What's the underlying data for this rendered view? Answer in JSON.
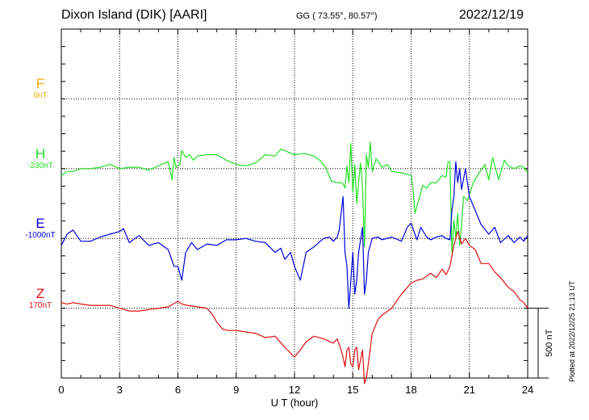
{
  "header": {
    "station": "Dixon Island (DIK)  [AARI]",
    "coords": "GG ( 73.55°,  80.57°)",
    "date": "2022/12/19"
  },
  "footer": {
    "plotted": "Plotted at 2022/12/25 21:13 UT"
  },
  "chart_data": {
    "type": "line",
    "xlabel": "U T (hour)",
    "xlim": [
      0,
      24
    ],
    "xticks": [
      0,
      3,
      6,
      9,
      12,
      15,
      18,
      21,
      24
    ],
    "scale_bar": {
      "label": "500 nT",
      "value": 500
    },
    "ylim_nT_relative": [
      -1000,
      1000
    ],
    "series": [
      {
        "name": "F",
        "offset_label": "0nT",
        "color": "#f0a800",
        "baseline_index": 1,
        "x": [],
        "y": []
      },
      {
        "name": "H",
        "offset_label": "-230nT",
        "color": "#22e022",
        "baseline_index": 2,
        "x": [
          0,
          0.3,
          0.6,
          1,
          1.5,
          2,
          2.5,
          3,
          3.5,
          4,
          4.5,
          5,
          5.5,
          5.7,
          5.8,
          5.9,
          6,
          6.1,
          6.2,
          6.4,
          6.6,
          6.8,
          7,
          7.5,
          8,
          8.5,
          9,
          9.5,
          10,
          10.5,
          11,
          11.3,
          11.5,
          11.8,
          12,
          12.5,
          13,
          13.3,
          13.6,
          13.9,
          14.2,
          14.4,
          14.5,
          14.6,
          14.7,
          14.8,
          14.9,
          15,
          15.1,
          15.2,
          15.3,
          15.4,
          15.5,
          15.6,
          15.7,
          15.8,
          15.9,
          16,
          16.2,
          16.5,
          16.8,
          17,
          17.5,
          17.8,
          18,
          18.1,
          18.2,
          18.4,
          18.6,
          18.8,
          19,
          19.3,
          19.6,
          19.8,
          19.9,
          20,
          20.1,
          20.2,
          20.3,
          20.4,
          20.5,
          20.6,
          20.7,
          20.9,
          21.2,
          21.5,
          21.8,
          22,
          22.2,
          22.5,
          22.8,
          23,
          23.3,
          23.6,
          23.8,
          24
        ],
        "y": [
          -50,
          -20,
          -20,
          0,
          0,
          10,
          30,
          0,
          10,
          10,
          -10,
          20,
          50,
          -80,
          80,
          10,
          20,
          30,
          130,
          80,
          100,
          60,
          90,
          100,
          100,
          60,
          30,
          20,
          40,
          100,
          90,
          140,
          130,
          110,
          100,
          110,
          90,
          60,
          10,
          -90,
          -100,
          -100,
          -110,
          -140,
          20,
          -100,
          180,
          -170,
          30,
          -250,
          -90,
          40,
          -130,
          -560,
          100,
          10,
          190,
          -20,
          70,
          10,
          30,
          -20,
          -30,
          -40,
          -50,
          -140,
          -320,
          -220,
          -120,
          -140,
          -100,
          -100,
          -50,
          -60,
          50,
          50,
          -600,
          -370,
          -500,
          -320,
          -550,
          -400,
          -200,
          -230,
          -100,
          -30,
          30,
          -80,
          80,
          -80,
          60,
          20,
          0,
          20,
          10,
          -30
        ]
      },
      {
        "name": "E",
        "offset_label": "-1000nT",
        "color": "#0000e0",
        "baseline_index": 3,
        "x": [
          0,
          0.3,
          0.6,
          1,
          1.5,
          2,
          2.5,
          3,
          3.2,
          3.5,
          4,
          4.5,
          5,
          5.5,
          5.8,
          6,
          6.2,
          6.4,
          6.7,
          7,
          7.5,
          8,
          8.5,
          9,
          9.5,
          10,
          10.5,
          11,
          11.3,
          11.5,
          11.8,
          12,
          12.3,
          12.6,
          13,
          13.5,
          13.8,
          14,
          14.2,
          14.3,
          14.5,
          14.6,
          14.7,
          14.8,
          14.9,
          15,
          15.1,
          15.2,
          15.3,
          15.5,
          15.6,
          15.7,
          15.8,
          16,
          16.3,
          16.5,
          17,
          17.5,
          17.8,
          18,
          18.3,
          18.5,
          18.8,
          19,
          19.3,
          19.6,
          19.8,
          20,
          20.1,
          20.2,
          20.3,
          20.4,
          20.5,
          20.6,
          20.8,
          21,
          21.3,
          21.6,
          22,
          22.3,
          22.6,
          23,
          23.3,
          23.6,
          23.8,
          24
        ],
        "y": [
          -50,
          30,
          60,
          -20,
          -20,
          10,
          30,
          50,
          70,
          -30,
          20,
          -50,
          -30,
          -80,
          -200,
          -200,
          -300,
          -100,
          -30,
          -80,
          -40,
          -50,
          -10,
          -10,
          0,
          -20,
          -30,
          -100,
          -70,
          -150,
          -100,
          -200,
          -300,
          -100,
          -60,
          0,
          10,
          -20,
          10,
          60,
          300,
          -100,
          -200,
          -500,
          -300,
          -100,
          -400,
          -300,
          -100,
          80,
          -400,
          -300,
          -100,
          0,
          10,
          -10,
          10,
          -20,
          80,
          110,
          -10,
          80,
          10,
          -10,
          10,
          20,
          0,
          -10,
          200,
          300,
          550,
          400,
          500,
          350,
          500,
          300,
          200,
          100,
          30,
          80,
          -30,
          20,
          -30,
          10,
          -20,
          20
        ]
      },
      {
        "name": "Z",
        "offset_label": "170nT",
        "color": "#e01010",
        "baseline_index": 4,
        "x": [
          0,
          0.3,
          0.6,
          1,
          1.5,
          2,
          2.5,
          3,
          3.5,
          4,
          4.5,
          5,
          5.5,
          6,
          6.2,
          6.5,
          7,
          7.5,
          7.8,
          8,
          8.3,
          8.6,
          9,
          9.5,
          10,
          10.5,
          11,
          11.5,
          12,
          12.3,
          12.6,
          13,
          13.5,
          14,
          14.2,
          14.4,
          14.5,
          14.6,
          14.7,
          14.8,
          14.9,
          15,
          15.1,
          15.2,
          15.3,
          15.5,
          15.6,
          15.7,
          15.8,
          16,
          16.3,
          16.5,
          17,
          17.5,
          18,
          18.3,
          18.6,
          19,
          19.3,
          19.6,
          19.8,
          20,
          20.2,
          20.4,
          20.6,
          20.8,
          21,
          21.3,
          21.6,
          22,
          22.3,
          22.6,
          23,
          23.3,
          23.6,
          23.8,
          24
        ],
        "y": [
          40,
          30,
          40,
          30,
          20,
          20,
          20,
          0,
          -20,
          -20,
          -10,
          0,
          10,
          50,
          30,
          20,
          10,
          0,
          -50,
          -100,
          -150,
          -160,
          -160,
          -170,
          -180,
          -210,
          -200,
          -280,
          -350,
          -300,
          -240,
          -200,
          -220,
          -250,
          -220,
          -300,
          -350,
          -420,
          -300,
          -280,
          -400,
          -420,
          -300,
          -280,
          -440,
          -300,
          -540,
          -500,
          -400,
          -180,
          -80,
          -50,
          0,
          100,
          180,
          200,
          210,
          250,
          220,
          280,
          240,
          300,
          450,
          550,
          460,
          500,
          450,
          420,
          320,
          320,
          260,
          220,
          150,
          120,
          60,
          40,
          0
        ]
      }
    ]
  }
}
